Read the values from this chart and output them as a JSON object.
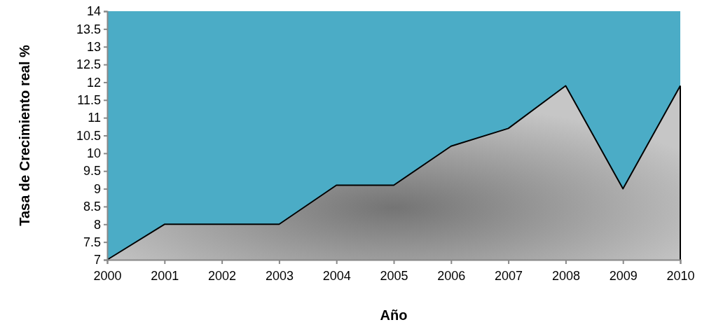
{
  "chart_data": {
    "type": "area",
    "xlabel": "Año",
    "ylabel": "Tasa de Crecimiento real %",
    "x": [
      2000,
      2001,
      2002,
      2003,
      2004,
      2005,
      2006,
      2007,
      2008,
      2009,
      2010
    ],
    "series": [
      {
        "color": "#a0a0a0",
        "values": [
          7,
          8,
          8,
          8,
          9.1,
          9.1,
          10.2,
          10.7,
          11.9,
          9.0,
          11.9
        ]
      }
    ],
    "xlim": [
      2000,
      2010
    ],
    "xticks": [
      2000,
      2001,
      2002,
      2003,
      2004,
      2005,
      2006,
      2007,
      2008,
      2009,
      2010
    ],
    "ylim": [
      7,
      14
    ],
    "yticks": [
      7,
      7.5,
      8,
      8.5,
      9,
      9.5,
      10,
      10.5,
      11,
      11.5,
      12,
      12.5,
      13,
      13.5,
      14
    ],
    "grid": false,
    "marker": "none",
    "line_style": "solid"
  }
}
